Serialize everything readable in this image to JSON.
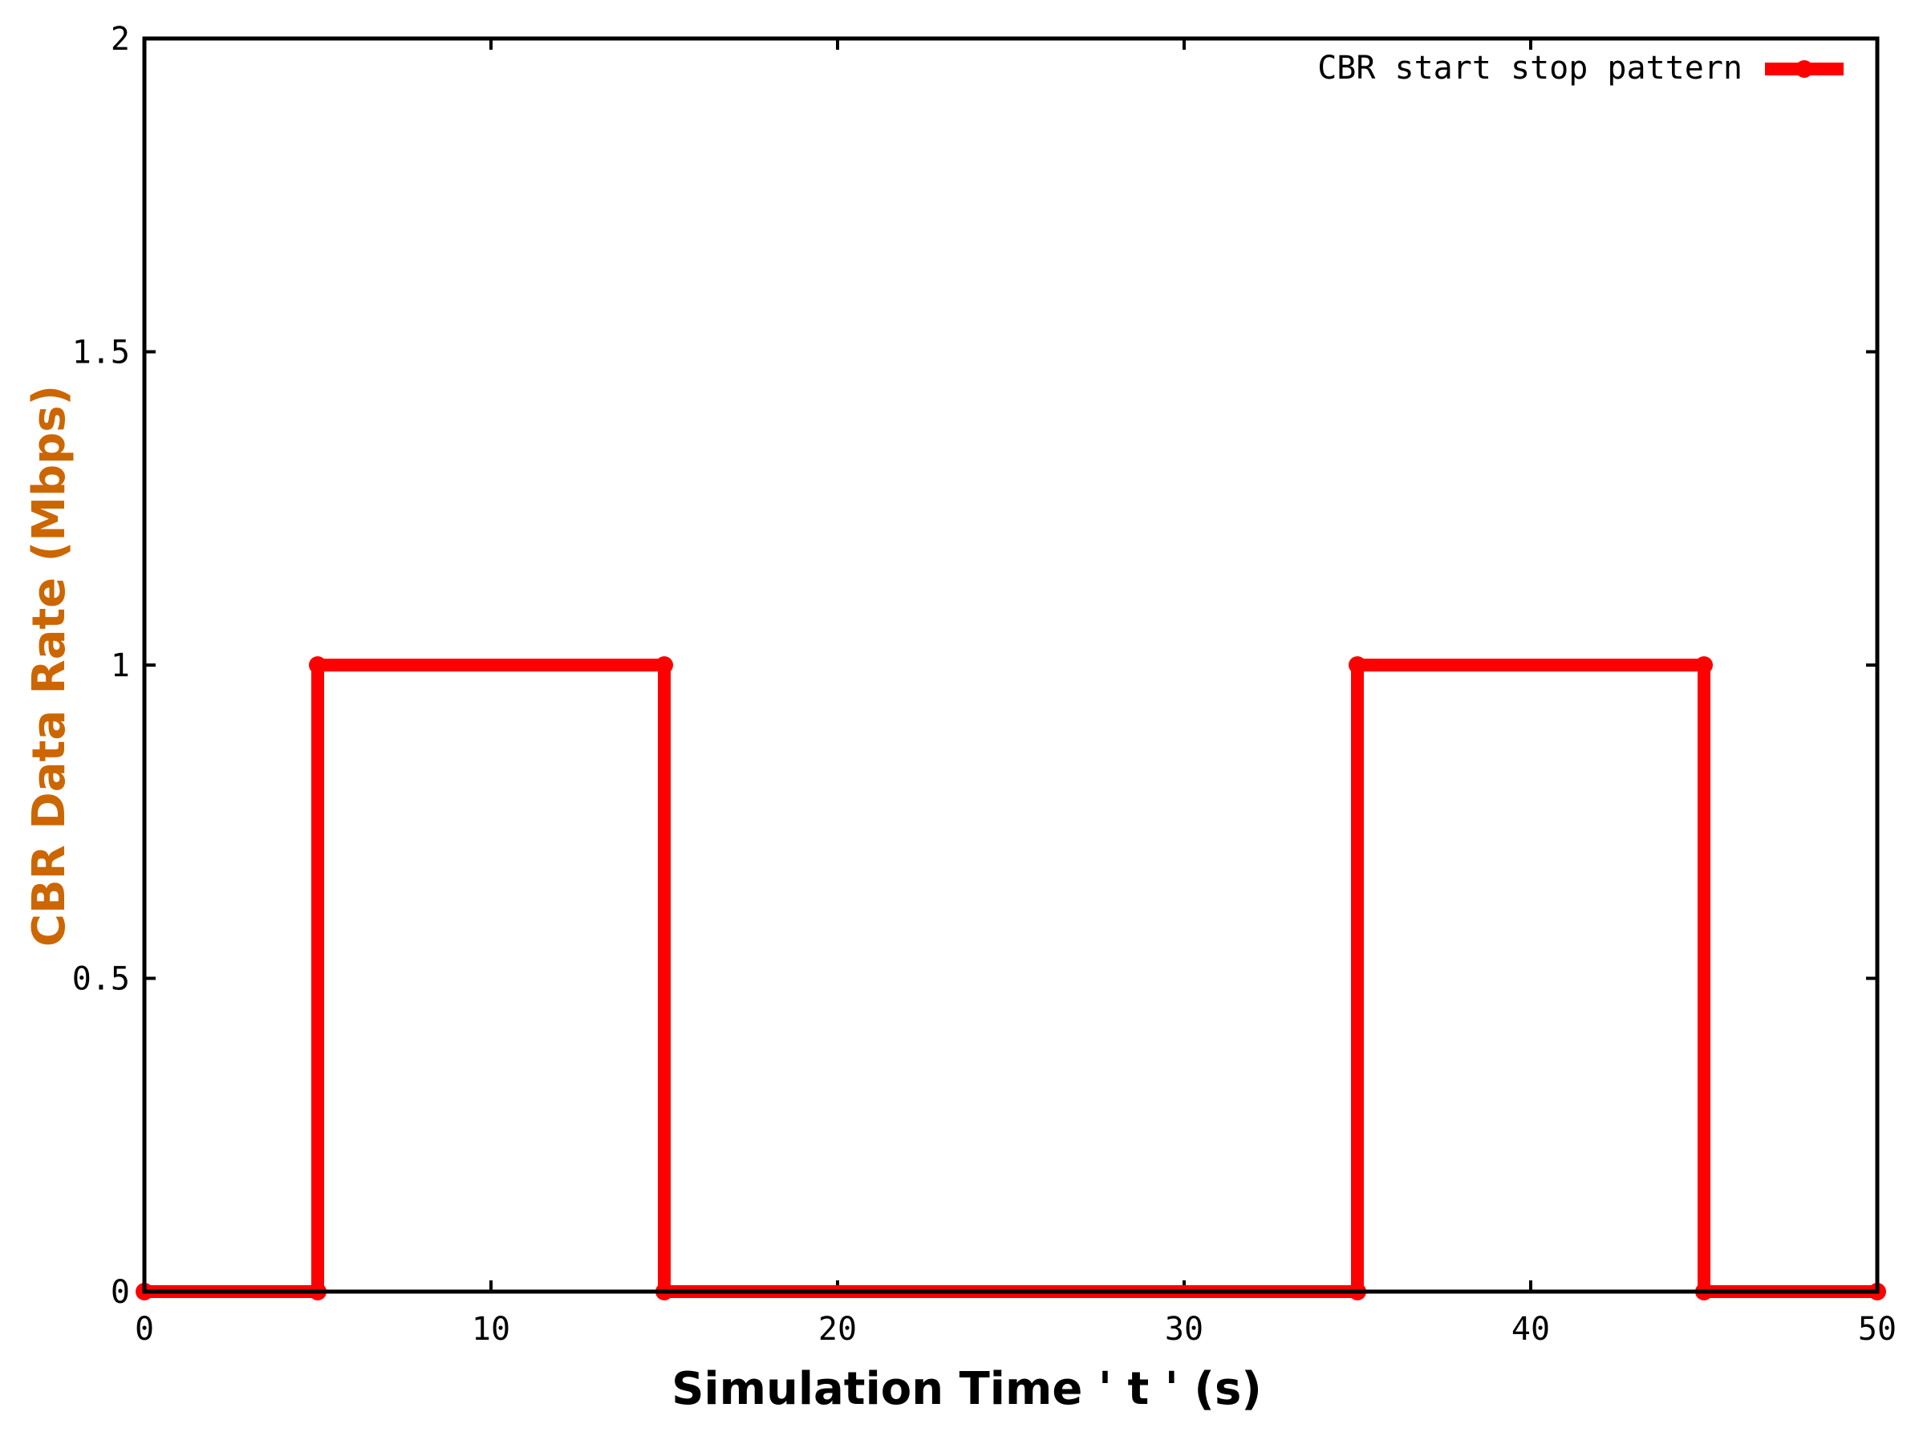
{
  "chart_data": {
    "type": "line",
    "title": "",
    "xlabel": "Simulation Time ' t ' (s)",
    "ylabel": "CBR Data Rate (Mbps)",
    "xlim": [
      0,
      50
    ],
    "ylim": [
      0,
      2
    ],
    "xticks": [
      0,
      10,
      20,
      30,
      40,
      50
    ],
    "xtick_labels": [
      "0",
      "10",
      "20",
      "30",
      "40",
      "50"
    ],
    "yticks": [
      0,
      0.5,
      1,
      1.5,
      2
    ],
    "ytick_labels": [
      "0",
      "0.5",
      "1",
      "1.5",
      "2"
    ],
    "grid": false,
    "legend_position": "top-right",
    "series": [
      {
        "name": "CBR start stop pattern",
        "color": "#ff0000",
        "points": [
          [
            0,
            0
          ],
          [
            5,
            0
          ],
          [
            5,
            0.5
          ],
          [
            5,
            1
          ],
          [
            15,
            1
          ],
          [
            15,
            0.75
          ],
          [
            15,
            0.25
          ],
          [
            15,
            0
          ],
          [
            35,
            0
          ],
          [
            35,
            0.5
          ],
          [
            35,
            1
          ],
          [
            45,
            1
          ],
          [
            45,
            0.5
          ],
          [
            45,
            0
          ],
          [
            50,
            0
          ]
        ],
        "markers": [
          [
            0,
            0
          ],
          [
            5,
            0
          ],
          [
            5,
            1
          ],
          [
            15,
            1
          ],
          [
            15,
            0
          ],
          [
            35,
            0
          ],
          [
            35,
            1
          ],
          [
            45,
            1
          ],
          [
            45,
            0
          ],
          [
            50,
            0
          ]
        ]
      }
    ],
    "colors": {
      "axis_title": "#cc6600",
      "line": "#ff0000",
      "axes": "#000000"
    }
  }
}
